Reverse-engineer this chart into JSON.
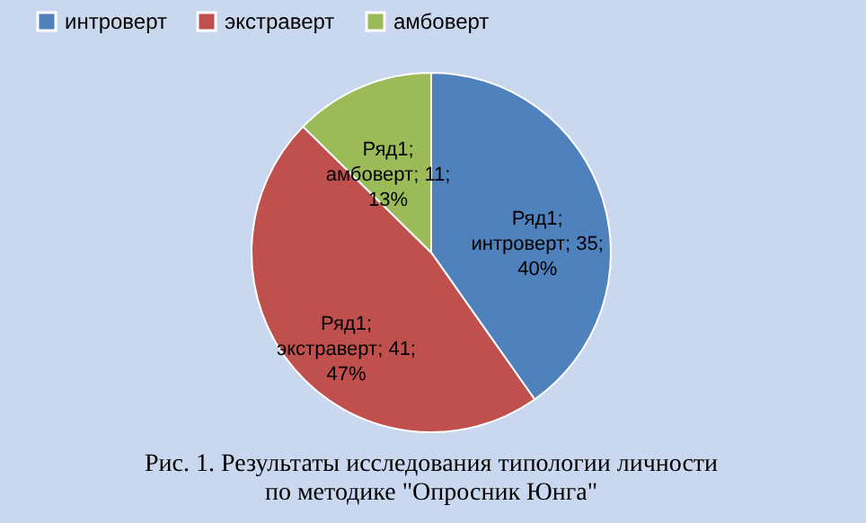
{
  "chart_data": {
    "type": "pie",
    "categories": [
      "интроверт",
      "экстраверт",
      "амбоверт"
    ],
    "values": [
      35,
      41,
      11
    ],
    "colors": [
      "#4f81bd",
      "#c0504d",
      "#9bbb59"
    ],
    "value_labels": [
      "Ряд1; интроверт; 35; 40%",
      "Ряд1; экстраверт; 41; 47%",
      "Ряд1; амбоверт; 11; 13%"
    ],
    "legend": "top",
    "annotations": [
      "Рис. 1. Результаты исследования типологии личности по методике \"Опросник Юнга\""
    ]
  }
}
